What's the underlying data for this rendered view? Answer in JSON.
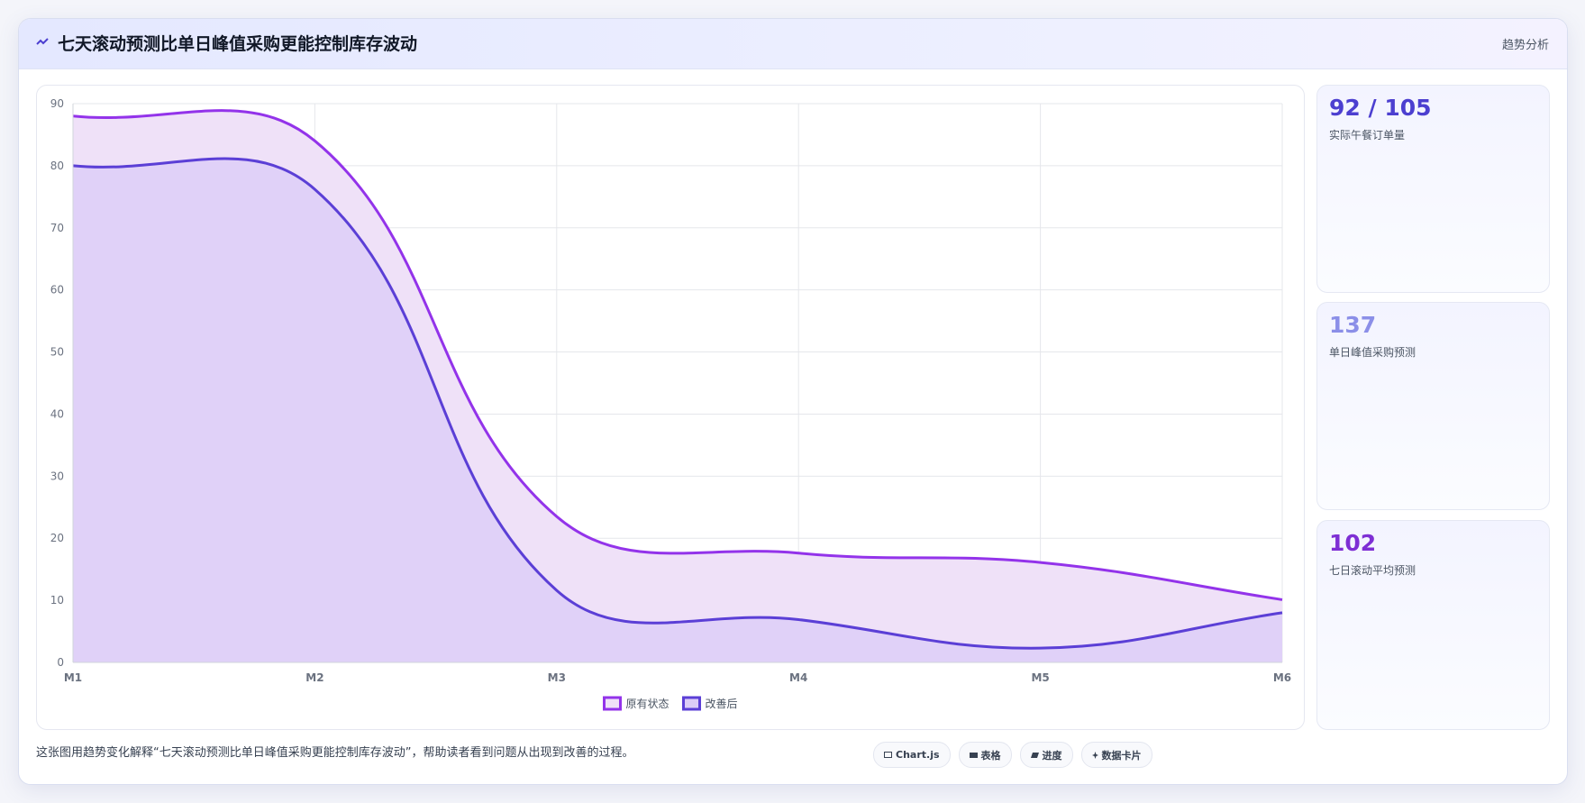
{
  "header": {
    "title": "七天滚动预测比单日峰值采购更能控制库存波动",
    "tag": "趋势分析"
  },
  "chart_data": {
    "type": "line",
    "categories": [
      "M1",
      "M2",
      "M3",
      "M4",
      "M5",
      "M6"
    ],
    "series": [
      {
        "name": "原有状态",
        "color": "#9333ea",
        "fill": "#efe1f8",
        "values": [
          88,
          84,
          23.5,
          17.6,
          16.1,
          10.1
        ]
      },
      {
        "name": "改善后",
        "color": "#5b3fd6",
        "fill": "#dccdf7",
        "values": [
          80,
          76.2,
          11.6,
          6.9,
          2.3,
          8
        ]
      }
    ],
    "ylim": [
      0,
      90
    ],
    "yticks": [
      0,
      10,
      20,
      30,
      40,
      50,
      60,
      70,
      80,
      90
    ],
    "grid": true,
    "legend": "bottom"
  },
  "kpis": [
    {
      "value": "92 / 105",
      "label": "实际午餐订单量",
      "color": "#4c3fd0"
    },
    {
      "value": "137",
      "label": "单日峰值采购预测",
      "color": "#8b8fe8"
    },
    {
      "value": "102",
      "label": "七日滚动平均预测",
      "color": "#7e2fd4"
    }
  ],
  "footer": {
    "text": "这张图用趋势变化解释“七天滚动预测比单日峰值采购更能控制库存波动”，帮助读者看到问题从出现到改善的过程。",
    "chips": [
      "Chart.js",
      "表格",
      "进度",
      "数据卡片"
    ]
  }
}
